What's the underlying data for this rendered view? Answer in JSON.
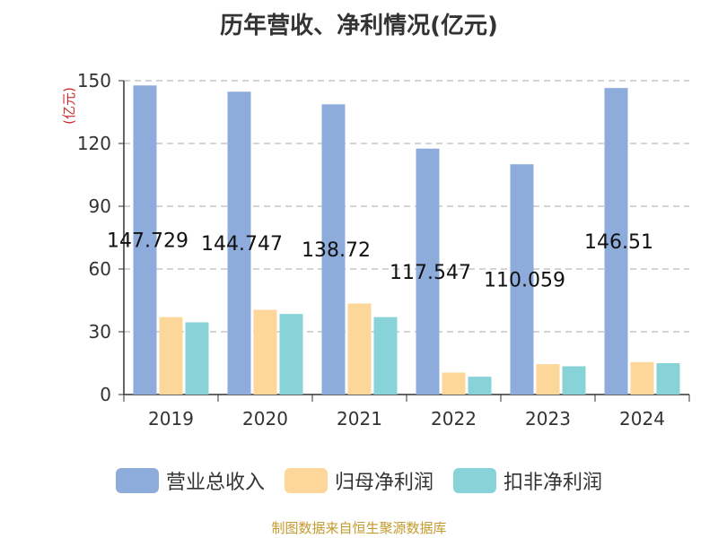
{
  "title": "历年营收、净利情况(亿元)",
  "source": "制图数据来自恒生聚源数据库",
  "colors": {
    "revenue": "#8eacdb",
    "net_profit": "#fdd79a",
    "deducted_profit": "#87d3d7",
    "unit_label": "#d22b2b",
    "grid": "#bbbbbb",
    "axis": "#333333"
  },
  "chart_data": {
    "type": "bar",
    "title": "历年营收、净利情况(亿元)",
    "ylabel": "(亿元)",
    "xlabel": "",
    "ylim": [
      0,
      150
    ],
    "yticks": [
      0,
      30,
      60,
      90,
      120,
      150
    ],
    "grid": true,
    "legend_position": "bottom",
    "categories": [
      "2019",
      "2020",
      "2021",
      "2022",
      "2023",
      "2024"
    ],
    "series": [
      {
        "name": "营业总收入",
        "color": "#8eacdb",
        "values": [
          147.729,
          144.747,
          138.72,
          117.547,
          110.059,
          146.51
        ],
        "labels": [
          "147.729",
          "144.747",
          "138.72",
          "117.547",
          "110.059",
          "146.51"
        ]
      },
      {
        "name": "归母净利润",
        "color": "#fdd79a",
        "values": [
          37.0,
          40.5,
          43.5,
          10.5,
          14.5,
          15.5
        ]
      },
      {
        "name": "扣非净利润",
        "color": "#87d3d7",
        "values": [
          34.5,
          38.5,
          37.0,
          8.5,
          13.5,
          15.0
        ]
      }
    ]
  }
}
